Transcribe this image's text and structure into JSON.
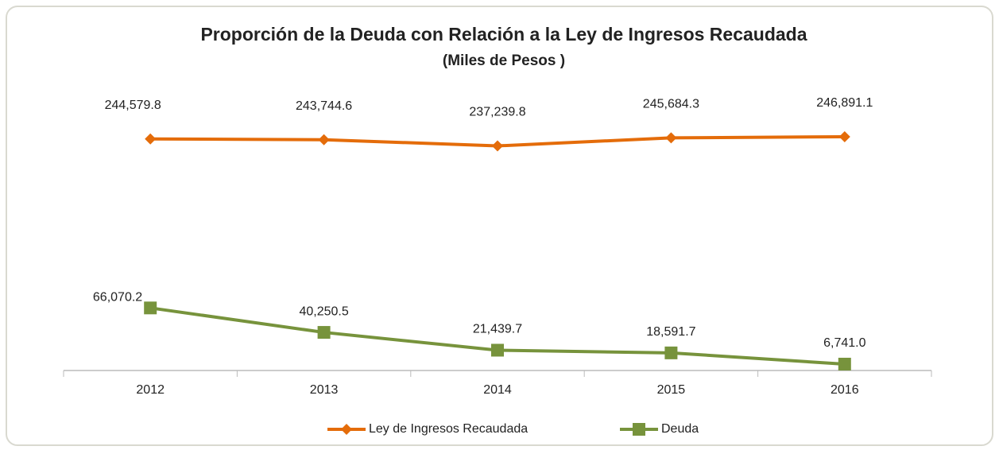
{
  "chart_data": {
    "type": "line",
    "title": "Proporción de la Deuda con Relación a la Ley de  Ingresos Recaudada",
    "subtitle": "(Miles de Pesos )",
    "categories": [
      "2012",
      "2013",
      "2014",
      "2015",
      "2016"
    ],
    "series": [
      {
        "name": "Ley de Ingresos Recaudada",
        "color": "#e46c0a",
        "marker": "diamond",
        "values": [
          244579.8,
          243744.6,
          237239.8,
          245684.3,
          246891.1
        ],
        "value_labels": [
          "244,579.8",
          "243,744.6",
          "237,239.8",
          "245,684.3",
          "246,891.1"
        ]
      },
      {
        "name": "Deuda",
        "color": "#77933c",
        "marker": "square",
        "values": [
          66070.2,
          40250.5,
          21439.7,
          18591.7,
          6741.0
        ],
        "value_labels": [
          "66,070.2",
          "40,250.5",
          "21,439.7",
          "18,591.7",
          "6,741.0"
        ]
      }
    ]
  }
}
